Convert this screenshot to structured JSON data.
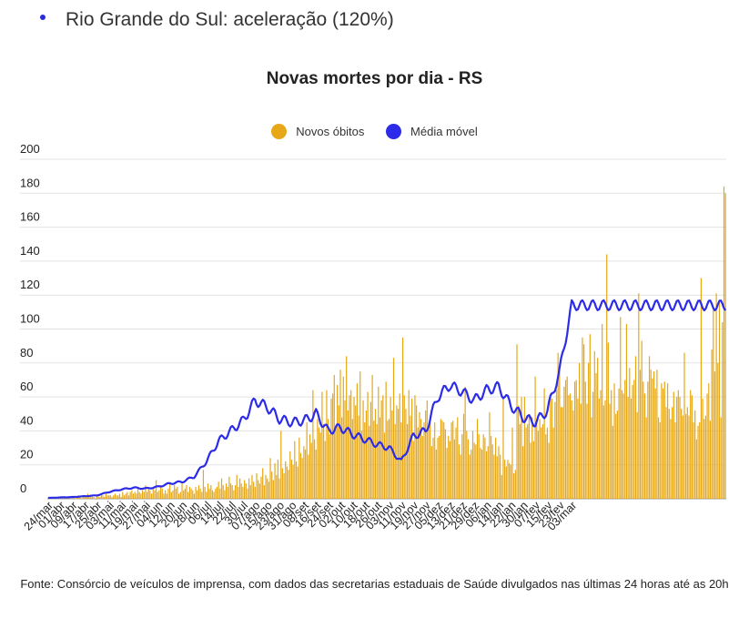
{
  "header": {
    "bullet_text": "Rio Grande do Sul: aceleração (120%)"
  },
  "source_text": "Fonte: Consórcio de veículos de imprensa, com dados das secretarias estaduais de Saúde divulgados nas últimas 24 horas até as 20h",
  "chart_data": {
    "type": "bar",
    "title": "Novas mortes por dia - RS",
    "ylim": [
      0,
      200
    ],
    "yticks": [
      "0",
      "20",
      "40",
      "60",
      "80",
      "100",
      "120",
      "140",
      "160",
      "180",
      "200"
    ],
    "grid": true,
    "legend_position": "top",
    "x_labels": [
      "24/mar",
      "01/abr",
      "09/abr",
      "17/abr",
      "25/abr",
      "03/mai",
      "11/mai",
      "19/mai",
      "27/mai",
      "04/jun",
      "12/jun",
      "20/jun",
      "28/jun",
      "06/jul",
      "14/jul",
      "22/jul",
      "30/jul",
      "07/ago",
      "15/ago",
      "23/ago",
      "31/ago",
      "08/set",
      "16/set",
      "24/set",
      "02/out",
      "10/out",
      "18/out",
      "26/out",
      "03/nov",
      "11/nov",
      "19/nov",
      "27/nov",
      "05/dez",
      "13/dez",
      "21/dez",
      "29/dez",
      "06/jan",
      "14/jan",
      "22/jan",
      "30/jan",
      "07/fev",
      "15/fev",
      "23/fev",
      "03/mar"
    ],
    "moving_average_weekly": [
      0.5,
      0.8,
      1.0,
      1.5,
      2.0,
      4.0,
      5.5,
      6.5,
      6.0,
      7.0,
      9.0,
      10.0,
      13.0,
      22.0,
      34.0,
      40.0,
      46.0,
      58.0,
      54.0,
      47.0,
      45.0,
      46.0,
      50.0,
      40.0,
      42.0,
      38.0,
      35.0,
      32.0,
      30.0,
      22.0,
      37.0,
      40.0,
      60.0,
      67.0,
      63.0,
      58.0,
      64.0,
      66.0,
      55.0,
      48.0,
      45.0,
      52.0,
      75.0,
      114.0
    ],
    "series": [
      {
        "name": "Novos óbitos",
        "color": "#e6a817",
        "values": [
          0,
          0,
          1,
          0,
          0,
          1,
          0,
          0,
          0,
          0,
          1,
          1,
          0,
          0,
          1,
          0,
          1,
          1,
          0,
          1,
          2,
          1,
          0,
          1,
          2,
          1,
          3,
          1,
          2,
          2,
          1,
          0,
          2,
          2,
          1,
          3,
          2,
          1,
          3,
          2,
          2,
          2,
          1,
          2,
          3,
          2,
          2,
          3,
          1,
          4,
          2,
          3,
          4,
          2,
          4,
          5,
          3,
          4,
          3,
          7,
          4,
          3,
          5,
          4,
          8,
          4,
          6,
          5,
          3,
          7,
          5,
          11,
          4,
          5,
          8,
          6,
          3,
          5,
          3,
          6,
          9,
          4,
          5,
          8,
          6,
          7,
          3,
          4,
          9,
          5,
          6,
          8,
          4,
          7,
          6,
          5,
          3,
          7,
          5,
          8,
          6,
          4,
          17,
          7,
          4,
          9,
          6,
          8,
          5,
          4,
          6,
          7,
          10,
          6,
          12,
          8,
          5,
          9,
          7,
          13,
          9,
          8,
          5,
          8,
          14,
          7,
          12,
          9,
          7,
          11,
          9,
          6,
          12,
          8,
          14,
          10,
          7,
          15,
          11,
          9,
          13,
          18,
          8,
          14,
          12,
          10,
          24,
          16,
          11,
          21,
          14,
          23,
          12,
          40,
          18,
          15,
          22,
          19,
          17,
          28,
          23,
          20,
          34,
          22,
          19,
          36,
          27,
          24,
          31,
          29,
          45,
          26,
          38,
          33,
          64,
          35,
          29,
          47,
          42,
          39,
          63,
          44,
          34,
          64,
          47,
          38,
          59,
          62,
          73,
          42,
          67,
          55,
          76,
          48,
          72,
          58,
          84,
          52,
          61,
          64,
          47,
          60,
          55,
          68,
          49,
          75,
          40,
          58,
          45,
          52,
          63,
          43,
          57,
          73,
          46,
          53,
          44,
          66,
          48,
          58,
          61,
          39,
          69,
          46,
          47,
          60,
          52,
          83,
          44,
          55,
          53,
          62,
          45,
          95,
          61,
          53,
          44,
          64,
          49,
          59,
          34,
          61,
          55,
          42,
          51,
          47,
          37,
          45,
          52,
          58,
          42,
          49,
          31,
          36,
          45,
          29,
          36,
          37,
          47,
          46,
          45,
          41,
          30,
          37,
          34,
          45,
          46,
          35,
          42,
          48,
          32,
          26,
          38,
          50,
          66,
          40,
          35,
          26,
          29,
          40,
          33,
          32,
          47,
          38,
          30,
          29,
          38,
          36,
          28,
          31,
          51,
          37,
          32,
          26,
          36,
          25,
          31,
          26,
          14,
          60,
          23,
          19,
          23,
          21,
          20,
          42,
          15,
          17,
          91,
          55,
          44,
          60,
          31,
          60,
          42,
          44,
          49,
          33,
          48,
          34,
          72,
          47,
          40,
          47,
          42,
          44,
          65,
          38,
          42,
          33,
          62,
          59,
          42,
          57,
          64,
          86,
          76,
          54,
          54,
          66,
          70,
          72,
          61,
          62,
          58,
          52,
          69,
          70,
          59,
          80,
          56,
          95,
          91,
          69,
          56,
          80,
          97,
          48,
          63,
          87,
          74,
          83,
          59,
          64,
          103,
          55,
          58,
          144,
          92,
          56,
          64,
          43,
          68,
          50,
          52,
          65,
          107,
          64,
          62,
          70,
          103,
          60,
          77,
          59,
          67,
          70,
          84,
          51,
          121,
          76,
          93,
          69,
          62,
          48,
          69,
          84,
          76,
          71,
          75,
          65,
          76,
          48,
          45,
          68,
          65,
          69,
          54,
          68,
          53,
          47,
          54,
          63,
          45,
          60,
          64,
          60,
          53,
          49,
          86,
          50,
          54,
          49,
          64,
          61,
          45,
          52,
          35,
          43,
          45,
          130,
          59,
          47,
          49,
          62,
          68,
          46,
          88,
          113,
          75,
          121,
          80,
          117,
          48,
          104,
          184,
          180
        ]
      },
      {
        "name": "Média móvel",
        "color": "#2c2ce8"
      }
    ]
  }
}
